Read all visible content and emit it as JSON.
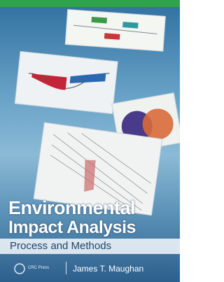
{
  "cover": {
    "title_line1": "Environmental",
    "title_line2": "Impact Analysis",
    "subtitle": "Process and Methods",
    "publisher": "CRC Press",
    "author": "James T. Maughan"
  }
}
